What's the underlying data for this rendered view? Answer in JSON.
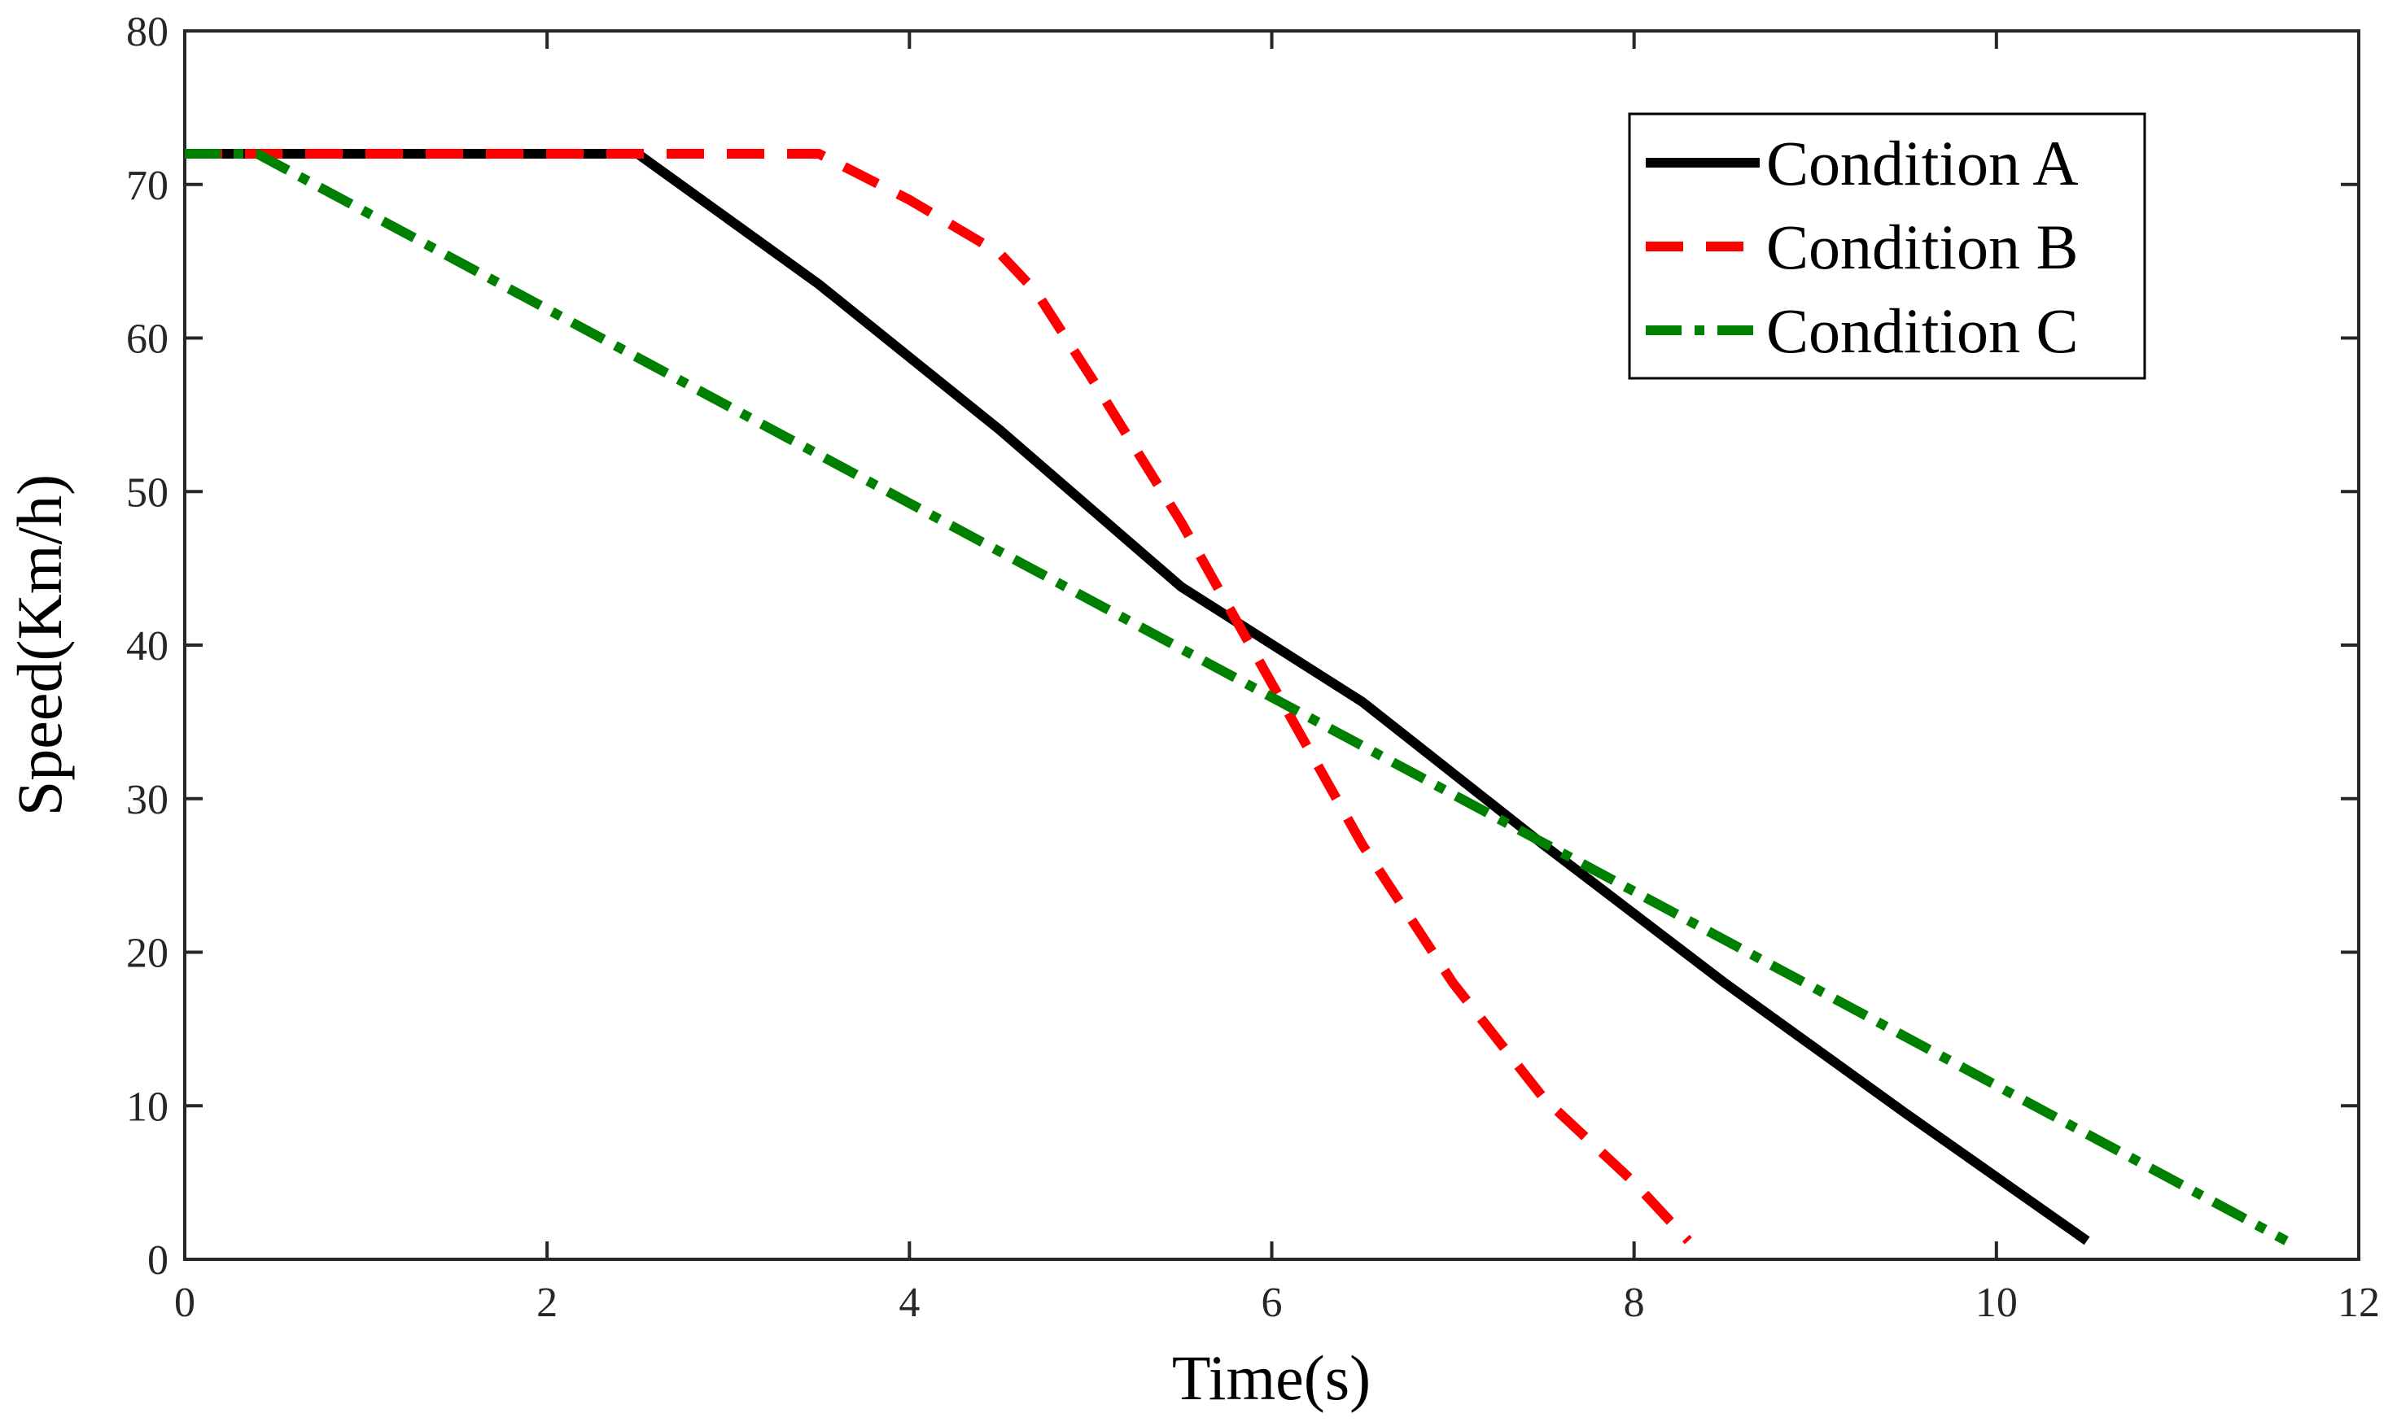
{
  "chart_data": {
    "type": "line",
    "title": "",
    "xlabel": "Time(s)",
    "ylabel": "Speed(Km/h)",
    "xlim": [
      0,
      12
    ],
    "ylim": [
      0,
      80
    ],
    "xticks": [
      0,
      2,
      4,
      6,
      8,
      10,
      12
    ],
    "yticks": [
      0,
      10,
      20,
      30,
      40,
      50,
      60,
      70,
      80
    ],
    "grid": false,
    "legend_position": "top-right",
    "series": [
      {
        "name": "Condition A",
        "color": "#000000",
        "style": "solid",
        "points": [
          [
            0,
            72
          ],
          [
            2.5,
            72
          ],
          [
            3.5,
            63.5
          ],
          [
            4.5,
            54
          ],
          [
            5.5,
            43.8
          ],
          [
            6.5,
            36.3
          ],
          [
            7.5,
            27
          ],
          [
            8.5,
            18
          ],
          [
            9.5,
            9.5
          ],
          [
            10.5,
            1.2
          ]
        ]
      },
      {
        "name": "Condition B",
        "color": "#ff0000",
        "style": "dashed",
        "points": [
          [
            0,
            72
          ],
          [
            3.5,
            72
          ],
          [
            4.0,
            69
          ],
          [
            4.5,
            65.5
          ],
          [
            4.7,
            63
          ],
          [
            5.0,
            57.5
          ],
          [
            5.5,
            48
          ],
          [
            6.0,
            37.5
          ],
          [
            6.5,
            27
          ],
          [
            7.0,
            18
          ],
          [
            7.5,
            10.5
          ],
          [
            8.0,
            5
          ],
          [
            8.3,
            1.2
          ]
        ]
      },
      {
        "name": "Condition C",
        "color": "#008000",
        "style": "dashdot",
        "points": [
          [
            0,
            72
          ],
          [
            0.4,
            72
          ],
          [
            11.6,
            1.2
          ]
        ]
      }
    ]
  }
}
